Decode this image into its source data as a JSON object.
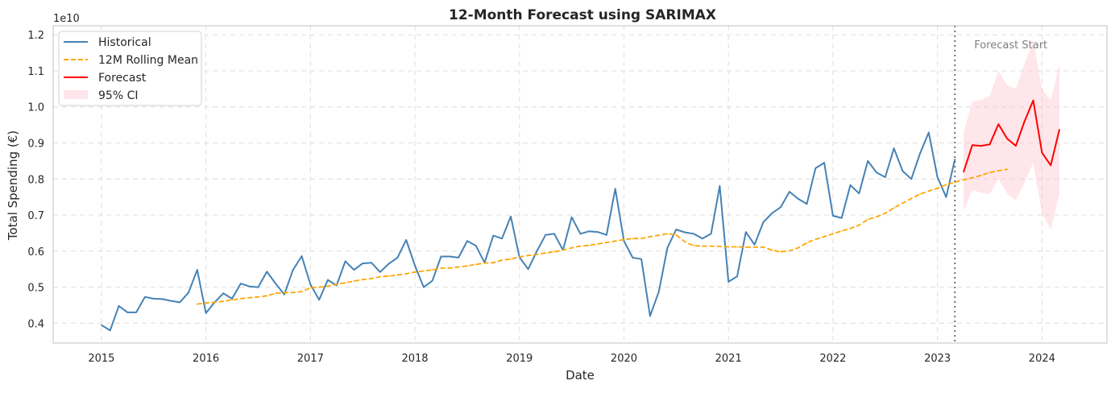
{
  "chart_data": {
    "type": "line",
    "title": "12-Month Forecast using SARIMAX",
    "xlabel": "Date",
    "ylabel": "Total Spending (€)",
    "y_offset_label": "1e10",
    "xlim": [
      "2014-07-15",
      "2024-08-15"
    ],
    "ylim": [
      0.345,
      1.225
    ],
    "y_scale_multiplier": 10000000000,
    "x_ticks": [
      "2015",
      "2016",
      "2017",
      "2018",
      "2019",
      "2020",
      "2021",
      "2022",
      "2023",
      "2024"
    ],
    "y_ticks": [
      "0.4",
      "0.5",
      "0.6",
      "0.7",
      "0.8",
      "0.9",
      "1.0",
      "1.1",
      "1.2"
    ],
    "grid": true,
    "legend_position": "top-left",
    "annotation": {
      "text": "Forecast Start",
      "date": "2023-03-01"
    },
    "legend": [
      {
        "label": "Historical",
        "style": "line",
        "color": "#4682B4"
      },
      {
        "label": "12M Rolling Mean",
        "style": "dashed",
        "color": "#FFA500"
      },
      {
        "label": "Forecast",
        "style": "line",
        "color": "#FF0000"
      },
      {
        "label": "95% CI",
        "style": "area",
        "color": "#FFC0CB"
      }
    ],
    "series": [
      {
        "name": "Historical",
        "color": "#4682B4",
        "start": "2015-01",
        "values": [
          0.395,
          0.38,
          0.448,
          0.43,
          0.43,
          0.473,
          0.468,
          0.467,
          0.462,
          0.458,
          0.485,
          0.548,
          0.428,
          0.458,
          0.483,
          0.468,
          0.51,
          0.502,
          0.5,
          0.543,
          0.51,
          0.48,
          0.548,
          0.586,
          0.508,
          0.465,
          0.52,
          0.505,
          0.572,
          0.548,
          0.566,
          0.568,
          0.542,
          0.565,
          0.582,
          0.631,
          0.56,
          0.5,
          0.518,
          0.585,
          0.585,
          0.582,
          0.628,
          0.615,
          0.568,
          0.643,
          0.635,
          0.696,
          0.583,
          0.55,
          0.6,
          0.645,
          0.648,
          0.603,
          0.694,
          0.648,
          0.655,
          0.653,
          0.645,
          0.773,
          0.628,
          0.582,
          0.578,
          0.42,
          0.487,
          0.61,
          0.66,
          0.652,
          0.648,
          0.635,
          0.648,
          0.781,
          0.515,
          0.53,
          0.653,
          0.618,
          0.68,
          0.705,
          0.722,
          0.765,
          0.745,
          0.731,
          0.83,
          0.845,
          0.698,
          0.692,
          0.783,
          0.76,
          0.85,
          0.818,
          0.805,
          0.885,
          0.822,
          0.8,
          0.871,
          0.929,
          0.805,
          0.75,
          0.855
        ]
      },
      {
        "name": "12M Rolling Mean",
        "color": "#FFA500",
        "start": "2015-12",
        "values": [
          0.453,
          0.456,
          0.458,
          0.461,
          0.465,
          0.468,
          0.471,
          0.473,
          0.476,
          0.483,
          0.485,
          0.485,
          0.488,
          0.498,
          0.5,
          0.503,
          0.508,
          0.512,
          0.517,
          0.521,
          0.524,
          0.529,
          0.531,
          0.534,
          0.537,
          0.542,
          0.545,
          0.548,
          0.553,
          0.553,
          0.556,
          0.559,
          0.563,
          0.567,
          0.568,
          0.575,
          0.578,
          0.584,
          0.588,
          0.591,
          0.595,
          0.598,
          0.603,
          0.609,
          0.614,
          0.616,
          0.62,
          0.624,
          0.628,
          0.632,
          0.635,
          0.635,
          0.64,
          0.644,
          0.648,
          0.645,
          0.626,
          0.615,
          0.614,
          0.614,
          0.613,
          0.612,
          0.612,
          0.611,
          0.611,
          0.611,
          0.603,
          0.598,
          0.601,
          0.609,
          0.623,
          0.633,
          0.64,
          0.648,
          0.656,
          0.663,
          0.672,
          0.688,
          0.695,
          0.705,
          0.72,
          0.733,
          0.746,
          0.758,
          0.767,
          0.774,
          0.784,
          0.791,
          0.798,
          0.803,
          0.81,
          0.818,
          0.823,
          0.827
        ]
      },
      {
        "name": "Forecast",
        "color": "#FF0000",
        "start": "2023-04",
        "values": [
          0.82,
          0.894,
          0.892,
          0.896,
          0.952,
          0.912,
          0.892,
          0.96,
          1.018,
          0.873,
          0.838,
          0.937
        ],
        "ci_lower": [
          0.712,
          0.77,
          0.762,
          0.758,
          0.8,
          0.76,
          0.74,
          0.79,
          0.845,
          0.705,
          0.66,
          0.758
        ],
        "ci_upper": [
          0.93,
          1.015,
          1.02,
          1.03,
          1.1,
          1.06,
          1.05,
          1.12,
          1.185,
          1.05,
          1.018,
          1.12
        ]
      }
    ]
  }
}
